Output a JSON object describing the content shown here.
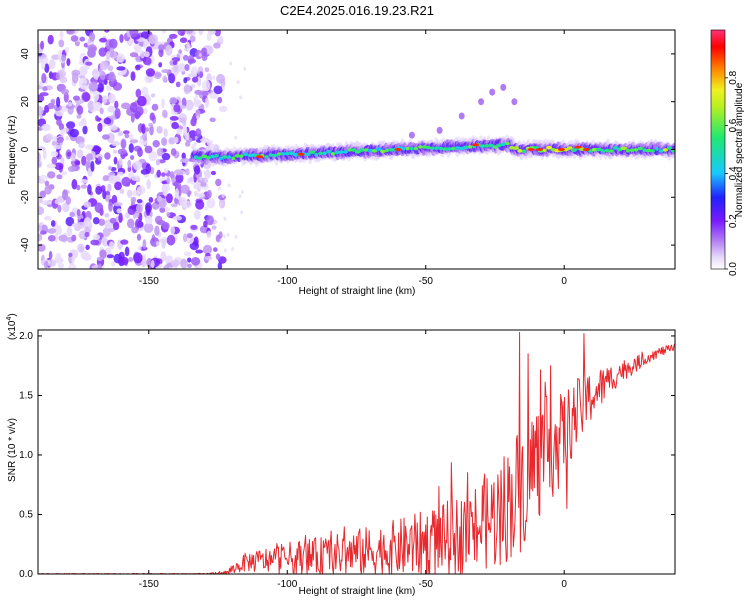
{
  "title": "C2E4.2025.016.19.23.R21",
  "colors": {
    "snr_line": "#e8282d",
    "signal_core": "#ff2020",
    "noise": "#8a3fe8",
    "colormap": [
      "#b07cf2",
      "#7a1cff",
      "#2020ff",
      "#18c8ff",
      "#20e870",
      "#f0f020",
      "#ff8000",
      "#ff0000",
      "#ff3377"
    ]
  },
  "chart_data": [
    {
      "type": "heatmap",
      "xlabel": "Height of straight line (km)",
      "ylabel": "Frequency (Hz)",
      "xlim": [
        -190,
        40
      ],
      "ylim": [
        -50,
        50
      ],
      "x_ticks": [
        -150,
        -100,
        -50,
        0
      ],
      "x_tick_labels": [
        "-150",
        "-100",
        "-50",
        "0"
      ],
      "y_ticks": [
        -40,
        -20,
        0,
        20,
        40
      ],
      "y_tick_labels": [
        "-40",
        "-20",
        "0",
        "20",
        "40"
      ],
      "colorbar": {
        "label": "Normalized spectral amplitude",
        "range": [
          0,
          1
        ],
        "ticks": [
          0.0,
          0.2,
          0.4,
          0.6,
          0.8
        ],
        "tick_labels": [
          "0.0",
          "0.2",
          "0.4",
          "0.6",
          "0.8"
        ]
      },
      "noise_region_x": [
        -190,
        -128
      ],
      "signal_ridge": [
        {
          "x": -133,
          "freq_hz": -3
        },
        {
          "x": -120,
          "freq_hz": -3
        },
        {
          "x": -100,
          "freq_hz": -2
        },
        {
          "x": -80,
          "freq_hz": -1
        },
        {
          "x": -60,
          "freq_hz": 0
        },
        {
          "x": -40,
          "freq_hz": 1
        },
        {
          "x": -20,
          "freq_hz": 2
        },
        {
          "x": -17,
          "freq_hz": 0
        },
        {
          "x": 0,
          "freq_hz": 0
        },
        {
          "x": 40,
          "freq_hz": 0
        }
      ],
      "grid": false
    },
    {
      "type": "line",
      "xlabel": "Height of straight line (km)",
      "ylabel": "SNR (10 * v/v)",
      "y_multiplier": "(x10^4)",
      "xlim": [
        -190,
        40
      ],
      "ylim": [
        0,
        2.05
      ],
      "x_ticks": [
        -150,
        -100,
        -50,
        0
      ],
      "x_tick_labels": [
        "-150",
        "-100",
        "-50",
        "0"
      ],
      "y_ticks": [
        0.0,
        0.5,
        1.0,
        1.5,
        2.0
      ],
      "y_tick_labels": [
        "0.0",
        "0.5",
        "1.0",
        "1.5",
        "2.0"
      ],
      "grid": false,
      "series": [
        {
          "x": [
            -190,
            -130,
            -122,
            -115,
            -105,
            -95,
            -85,
            -75,
            -65,
            -55,
            -45,
            -35,
            -25,
            -20,
            -15,
            -12,
            -8,
            -5,
            -2,
            0,
            5,
            10,
            15,
            20,
            25,
            30,
            35,
            40
          ],
          "mean": [
            0.0,
            0.0,
            0.01,
            0.1,
            0.12,
            0.14,
            0.15,
            0.18,
            0.2,
            0.24,
            0.28,
            0.35,
            0.48,
            0.6,
            0.75,
            0.9,
            1.0,
            1.05,
            1.1,
            1.2,
            1.35,
            1.5,
            1.6,
            1.7,
            1.75,
            1.82,
            1.87,
            1.9
          ],
          "amplitude": [
            0.005,
            0.005,
            0.02,
            0.08,
            0.12,
            0.15,
            0.17,
            0.2,
            0.23,
            0.26,
            0.3,
            0.35,
            0.45,
            0.5,
            0.55,
            0.55,
            0.5,
            0.45,
            0.4,
            0.35,
            0.3,
            0.22,
            0.15,
            0.1,
            0.07,
            0.05,
            0.04,
            0.03
          ],
          "peaks": [
            {
              "x": -16,
              "y": 2.03
            },
            {
              "x": 7,
              "y": 2.02
            },
            {
              "x": -13,
              "y": 1.85
            },
            {
              "x": -5,
              "y": 1.75
            },
            {
              "x": 1,
              "y": 0.55
            }
          ]
        }
      ]
    }
  ]
}
